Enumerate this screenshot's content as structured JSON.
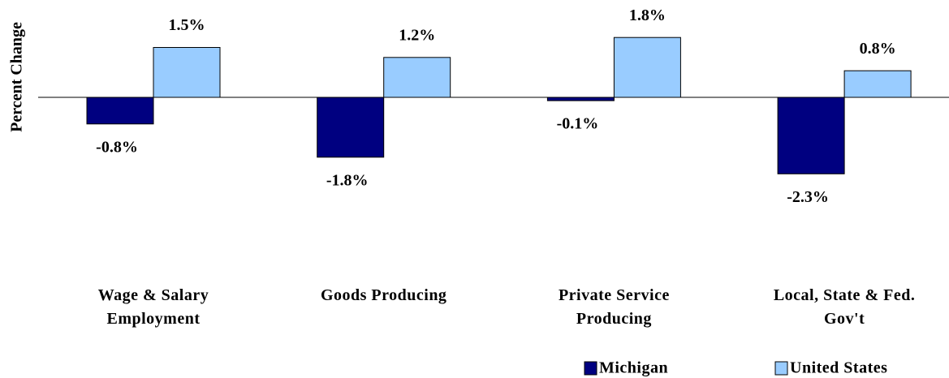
{
  "chart_data": {
    "type": "bar",
    "y_label": "Percent Change",
    "categories": [
      "Wage & Salary Employment",
      "Goods Producing",
      "Private Service Producing",
      "Local, State & Fed. Gov't"
    ],
    "series": [
      {
        "name": "Michigan",
        "color": "#000080",
        "values": [
          -0.8,
          -1.8,
          -0.1,
          -2.3
        ],
        "value_labels": [
          "-0.8%",
          "-1.8%",
          "-0.1%",
          "-2.3%"
        ]
      },
      {
        "name": "United States",
        "color": "#99ccff",
        "values": [
          1.5,
          1.2,
          1.8,
          0.8
        ],
        "value_labels": [
          "1.5%",
          "1.2%",
          "1.8%",
          "0.8%"
        ]
      }
    ],
    "ylim": [
      -5,
      3
    ],
    "legend": "bottom-right"
  }
}
